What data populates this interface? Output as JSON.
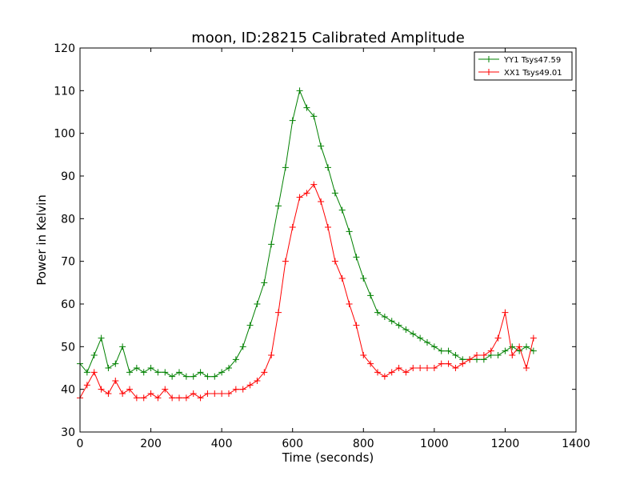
{
  "chart_data": {
    "type": "line",
    "title": "moon, ID:28215 Calibrated Amplitude",
    "xlabel": "Time (seconds)",
    "ylabel": "Power in Kelvin",
    "xlim": [
      0,
      1400
    ],
    "ylim": [
      30,
      120
    ],
    "xticks": [
      "0",
      "200",
      "400",
      "600",
      "800",
      "1000",
      "1200",
      "1400"
    ],
    "yticks": [
      "30",
      "40",
      "50",
      "60",
      "70",
      "80",
      "90",
      "100",
      "110",
      "120"
    ],
    "legend_position": "top-right",
    "marker": "plus",
    "grid": false,
    "series": [
      {
        "name": "YY1 Tsys47.59",
        "color": "#008000",
        "points": [
          [
            0,
            46
          ],
          [
            20,
            44
          ],
          [
            40,
            48
          ],
          [
            60,
            52
          ],
          [
            80,
            45
          ],
          [
            100,
            46
          ],
          [
            120,
            50
          ],
          [
            140,
            44
          ],
          [
            160,
            45
          ],
          [
            180,
            44
          ],
          [
            200,
            45
          ],
          [
            220,
            44
          ],
          [
            240,
            44
          ],
          [
            260,
            43
          ],
          [
            280,
            44
          ],
          [
            300,
            43
          ],
          [
            320,
            43
          ],
          [
            340,
            44
          ],
          [
            360,
            43
          ],
          [
            380,
            43
          ],
          [
            400,
            44
          ],
          [
            420,
            45
          ],
          [
            440,
            47
          ],
          [
            460,
            50
          ],
          [
            480,
            55
          ],
          [
            500,
            60
          ],
          [
            520,
            65
          ],
          [
            540,
            74
          ],
          [
            560,
            83
          ],
          [
            580,
            92
          ],
          [
            600,
            103
          ],
          [
            620,
            110
          ],
          [
            640,
            106
          ],
          [
            660,
            104
          ],
          [
            680,
            97
          ],
          [
            700,
            92
          ],
          [
            720,
            86
          ],
          [
            740,
            82
          ],
          [
            760,
            77
          ],
          [
            780,
            71
          ],
          [
            800,
            66
          ],
          [
            820,
            62
          ],
          [
            840,
            58
          ],
          [
            860,
            57
          ],
          [
            880,
            56
          ],
          [
            900,
            55
          ],
          [
            920,
            54
          ],
          [
            940,
            53
          ],
          [
            960,
            52
          ],
          [
            980,
            51
          ],
          [
            1000,
            50
          ],
          [
            1020,
            49
          ],
          [
            1040,
            49
          ],
          [
            1060,
            48
          ],
          [
            1080,
            47
          ],
          [
            1100,
            47
          ],
          [
            1120,
            47
          ],
          [
            1140,
            47
          ],
          [
            1160,
            48
          ],
          [
            1180,
            48
          ],
          [
            1200,
            49
          ],
          [
            1220,
            50
          ],
          [
            1240,
            49
          ],
          [
            1260,
            50
          ],
          [
            1280,
            49
          ]
        ]
      },
      {
        "name": "XX1 Tsys49.01",
        "color": "#ff0000",
        "points": [
          [
            0,
            38
          ],
          [
            20,
            41
          ],
          [
            40,
            44
          ],
          [
            60,
            40
          ],
          [
            80,
            39
          ],
          [
            100,
            42
          ],
          [
            120,
            39
          ],
          [
            140,
            40
          ],
          [
            160,
            38
          ],
          [
            180,
            38
          ],
          [
            200,
            39
          ],
          [
            220,
            38
          ],
          [
            240,
            40
          ],
          [
            260,
            38
          ],
          [
            280,
            38
          ],
          [
            300,
            38
          ],
          [
            320,
            39
          ],
          [
            340,
            38
          ],
          [
            360,
            39
          ],
          [
            380,
            39
          ],
          [
            400,
            39
          ],
          [
            420,
            39
          ],
          [
            440,
            40
          ],
          [
            460,
            40
          ],
          [
            480,
            41
          ],
          [
            500,
            42
          ],
          [
            520,
            44
          ],
          [
            540,
            48
          ],
          [
            560,
            58
          ],
          [
            580,
            70
          ],
          [
            600,
            78
          ],
          [
            620,
            85
          ],
          [
            640,
            86
          ],
          [
            660,
            88
          ],
          [
            680,
            84
          ],
          [
            700,
            78
          ],
          [
            720,
            70
          ],
          [
            740,
            66
          ],
          [
            760,
            60
          ],
          [
            780,
            55
          ],
          [
            800,
            48
          ],
          [
            820,
            46
          ],
          [
            840,
            44
          ],
          [
            860,
            43
          ],
          [
            880,
            44
          ],
          [
            900,
            45
          ],
          [
            920,
            44
          ],
          [
            940,
            45
          ],
          [
            960,
            45
          ],
          [
            980,
            45
          ],
          [
            1000,
            45
          ],
          [
            1020,
            46
          ],
          [
            1040,
            46
          ],
          [
            1060,
            45
          ],
          [
            1080,
            46
          ],
          [
            1100,
            47
          ],
          [
            1120,
            48
          ],
          [
            1140,
            48
          ],
          [
            1160,
            49
          ],
          [
            1180,
            52
          ],
          [
            1200,
            58
          ],
          [
            1220,
            48
          ],
          [
            1240,
            50
          ],
          [
            1260,
            45
          ],
          [
            1280,
            52
          ]
        ]
      }
    ]
  }
}
